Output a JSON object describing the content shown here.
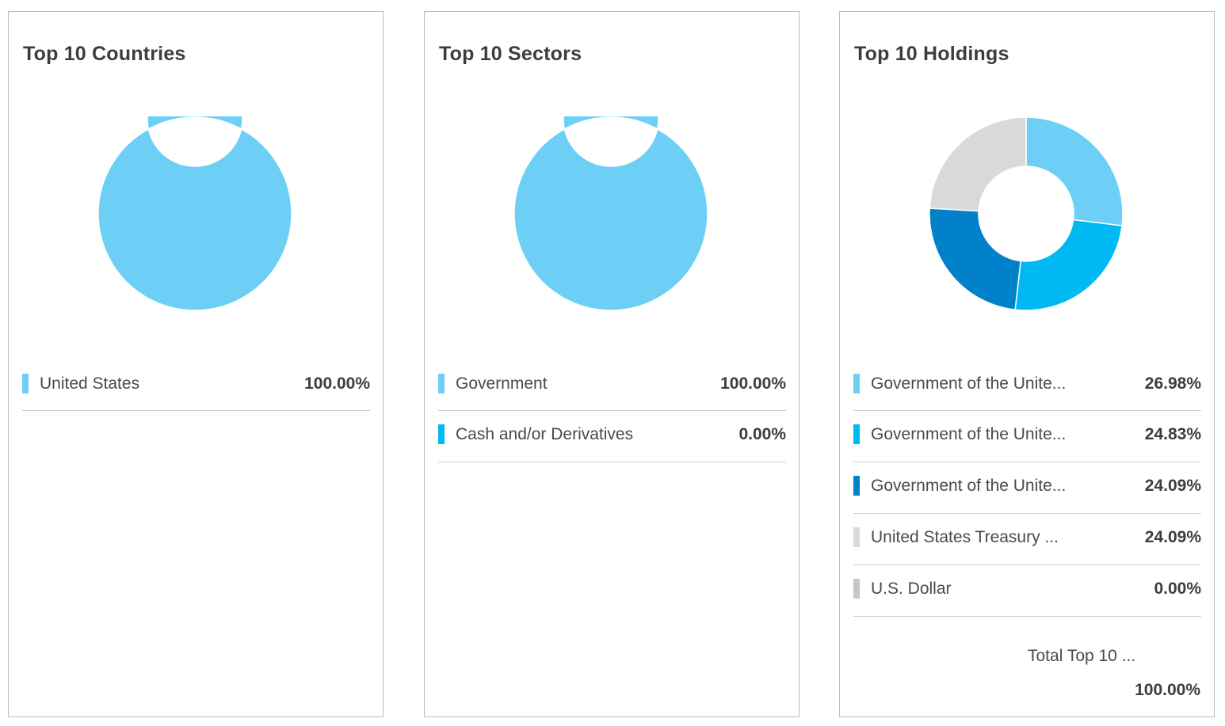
{
  "chart_data": [
    {
      "type": "pie",
      "title": "Top 10 Countries",
      "categories": [
        "United States"
      ],
      "values": [
        100.0
      ],
      "value_labels": [
        "100.00%"
      ],
      "colors": [
        "#6dcff6"
      ],
      "legend": "bottom"
    },
    {
      "type": "pie",
      "title": "Top 10 Sectors",
      "categories": [
        "Government",
        "Cash and/or Derivatives"
      ],
      "values": [
        100.0,
        0.0
      ],
      "value_labels": [
        "100.00%",
        "0.00%"
      ],
      "colors": [
        "#6dcff6",
        "#00b9f2"
      ],
      "legend": "bottom"
    },
    {
      "type": "pie",
      "title": "Top 10 Holdings",
      "categories": [
        "Government of the Unite...",
        "Government of the Unite...",
        "Government of the Unite...",
        "United States Treasury ...",
        "U.S. Dollar"
      ],
      "values": [
        26.98,
        24.83,
        24.09,
        24.09,
        0.0
      ],
      "value_labels": [
        "26.98%",
        "24.83%",
        "24.09%",
        "24.09%",
        "0.00%"
      ],
      "colors": [
        "#6dcff6",
        "#00b9f2",
        "#0081c9",
        "#d9d9d9",
        "#c6c6c6"
      ],
      "legend": "bottom",
      "total_label": "Total Top 10 ...",
      "total_value": "100.00%"
    }
  ]
}
